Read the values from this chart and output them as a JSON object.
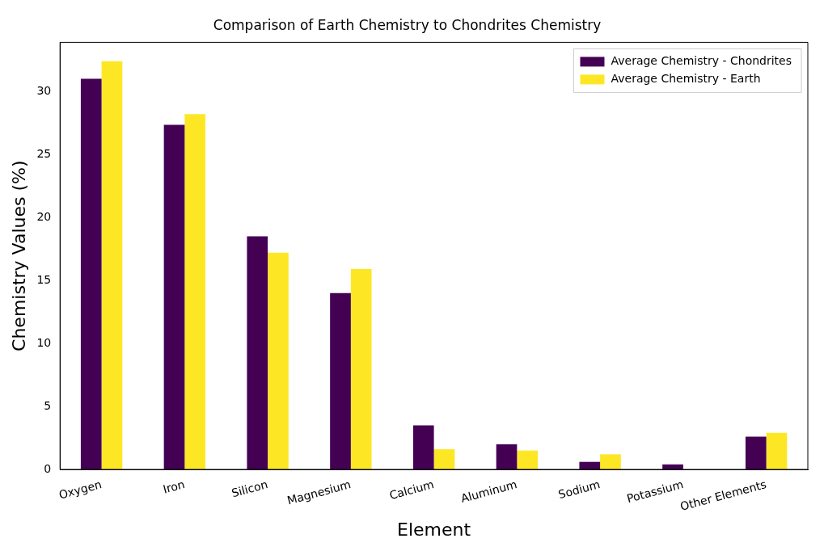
{
  "chart_data": {
    "type": "bar",
    "title": "Comparison of Earth Chemistry to Chondrites Chemistry",
    "xlabel": "Element",
    "ylabel": "Chemistry Values (%)",
    "categories": [
      "Oxygen",
      "Iron",
      "Silicon",
      "Magnesium",
      "Calcium",
      "Aluminum",
      "Sodium",
      "Potassium",
      "Other Elements"
    ],
    "series": [
      {
        "name": "Average Chemistry - Chondrites",
        "color": "#440154",
        "values": [
          31.0,
          27.35,
          18.5,
          14.0,
          3.5,
          2.0,
          0.6,
          0.4,
          2.6
        ]
      },
      {
        "name": "Average Chemistry - Earth",
        "color": "#fde725",
        "values": [
          32.4,
          28.2,
          17.2,
          15.9,
          1.6,
          1.5,
          1.2,
          0.0,
          2.9
        ]
      }
    ],
    "ylim": [
      0,
      33.9
    ],
    "yticks": [
      0,
      5,
      10,
      15,
      20,
      25,
      30
    ],
    "grid": false,
    "legend": "top right"
  }
}
